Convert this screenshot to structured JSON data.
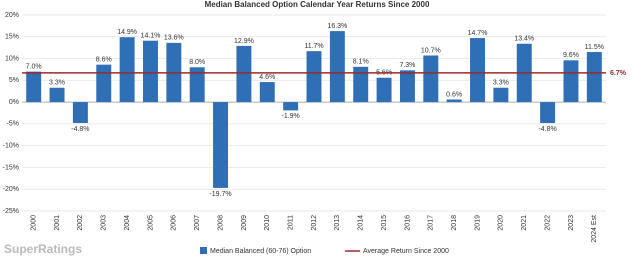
{
  "chart_data": {
    "type": "bar",
    "title": "Median Balanced Option Calendar Year Returns Since 2000",
    "categories": [
      "2000",
      "2001",
      "2002",
      "2003",
      "2004",
      "2005",
      "2006",
      "2007",
      "2008",
      "2009",
      "2010",
      "2011",
      "2012",
      "2013",
      "2014",
      "2015",
      "2016",
      "2017",
      "2018",
      "2019",
      "2020",
      "2021",
      "2022",
      "2023",
      "2024 Est"
    ],
    "series": [
      {
        "name": "Median Balanced (60-76) Option",
        "color": "#2f6fb5",
        "values": [
          7.0,
          3.3,
          -4.8,
          8.6,
          14.9,
          14.1,
          13.6,
          8.0,
          -19.7,
          12.9,
          4.6,
          -1.9,
          11.7,
          16.3,
          8.1,
          5.6,
          7.3,
          10.7,
          0.6,
          14.7,
          3.3,
          13.4,
          -4.8,
          9.6,
          11.5
        ],
        "value_labels": [
          "7.0%",
          "3.3%",
          "-4.8%",
          "8.6%",
          "14.9%",
          "14.1%",
          "13.6%",
          "8.0%",
          "-19.7%",
          "12.9%",
          "4.6%",
          "-1.9%",
          "11.7%",
          "16.3%",
          "8.1%",
          "5.6%",
          "7.3%",
          "10.7%",
          "0.6%",
          "14.7%",
          "3.3%",
          "13.4%",
          "-4.8%",
          "9.6%",
          "11.5%"
        ]
      }
    ],
    "average": {
      "name": "Average Return Since 2000",
      "value": 6.7,
      "label": "6.7%",
      "color": "#9e2a2b"
    },
    "ylim": [
      -25,
      20
    ],
    "yticks": [
      {
        "value": -25,
        "label": "-25%"
      },
      {
        "value": -20,
        "label": "-20%"
      },
      {
        "value": -15,
        "label": "-15%"
      },
      {
        "value": -10,
        "label": "-10%"
      },
      {
        "value": -5,
        "label": "-5%"
      },
      {
        "value": 0,
        "label": "0%"
      },
      {
        "value": 5,
        "label": "5%"
      },
      {
        "value": 10,
        "label": "10%"
      },
      {
        "value": 15,
        "label": "15%"
      },
      {
        "value": 20,
        "label": "20%"
      }
    ],
    "grid": true,
    "watermark": "SuperRatings"
  }
}
